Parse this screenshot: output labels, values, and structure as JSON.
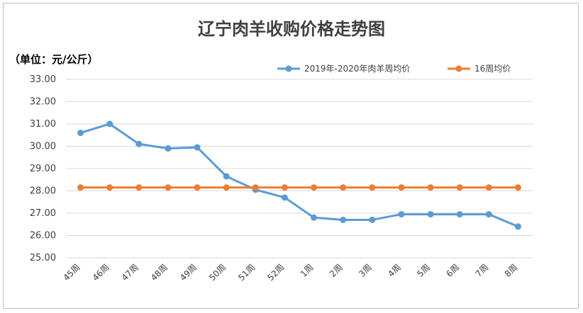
{
  "chart_data": {
    "type": "line",
    "title": "辽宁肉羊收购价格走势图",
    "unit_label": "（单位：元/公斤）",
    "ylim": [
      25.0,
      33.0
    ],
    "ytick_step": 1.0,
    "ytick_labels": [
      "25.00",
      "26.00",
      "27.00",
      "28.00",
      "29.00",
      "30.00",
      "31.00",
      "32.00",
      "33.00"
    ],
    "grid": true,
    "legend_position": "top-right",
    "categories": [
      "45周",
      "46周",
      "47周",
      "48周",
      "49周",
      "50周",
      "51周",
      "52周",
      "1周",
      "2周",
      "3周",
      "4周",
      "5周",
      "6周",
      "7周",
      "8周"
    ],
    "series": [
      {
        "name": "2019年-2020年肉羊周均价",
        "color": "#5b9bd5",
        "values": [
          30.6,
          31.0,
          30.1,
          29.9,
          29.95,
          28.65,
          28.05,
          27.7,
          26.8,
          26.7,
          26.7,
          26.95,
          26.95,
          26.95,
          26.95,
          26.4
        ]
      },
      {
        "name": "16周均价",
        "color": "#ed7d31",
        "values": [
          28.15,
          28.15,
          28.15,
          28.15,
          28.15,
          28.15,
          28.15,
          28.15,
          28.15,
          28.15,
          28.15,
          28.15,
          28.15,
          28.15,
          28.15,
          28.15
        ]
      }
    ]
  }
}
